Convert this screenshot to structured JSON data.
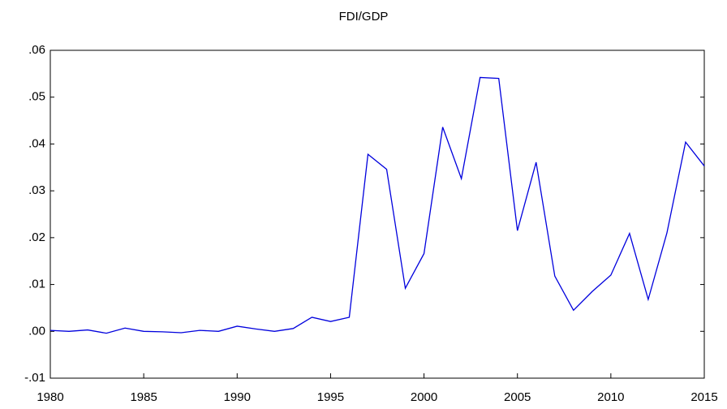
{
  "chart_data": {
    "type": "line",
    "title": "FDI/GDP",
    "x": [
      1980,
      1981,
      1982,
      1983,
      1984,
      1985,
      1986,
      1987,
      1988,
      1989,
      1990,
      1991,
      1992,
      1993,
      1994,
      1995,
      1996,
      1997,
      1998,
      1999,
      2000,
      2001,
      2002,
      2003,
      2004,
      2005,
      2006,
      2007,
      2008,
      2009,
      2010,
      2011,
      2012,
      2013,
      2014,
      2015
    ],
    "values": [
      0.0002,
      0.0,
      0.0003,
      -0.0004,
      0.0007,
      0.0,
      -0.0001,
      -0.0003,
      0.0002,
      0.0,
      0.0011,
      0.0005,
      0.0,
      0.0006,
      0.003,
      0.0021,
      0.003,
      0.0378,
      0.0346,
      0.0092,
      0.0166,
      0.0436,
      0.0326,
      0.0542,
      0.054,
      0.0215,
      0.0361,
      0.0118,
      0.0045,
      0.0085,
      0.012,
      0.0209,
      0.0068,
      0.021,
      0.0404,
      0.0353
    ],
    "color": "#0000dd",
    "xlim": [
      1980,
      2015
    ],
    "xticks": [
      1980,
      1985,
      1990,
      1995,
      2000,
      2005,
      2010,
      2015
    ],
    "ylim": [
      -0.01,
      0.06
    ],
    "yticks": [
      {
        "value": -0.01,
        "label": "-.01"
      },
      {
        "value": 0,
        "label": ".00"
      },
      {
        "value": 0.01,
        "label": ".01"
      },
      {
        "value": 0.02,
        "label": ".02"
      },
      {
        "value": 0.03,
        "label": ".03"
      },
      {
        "value": 0.04,
        "label": ".04"
      },
      {
        "value": 0.05,
        "label": ".05"
      },
      {
        "value": 0.06,
        "label": ".06"
      }
    ],
    "grid": false
  }
}
